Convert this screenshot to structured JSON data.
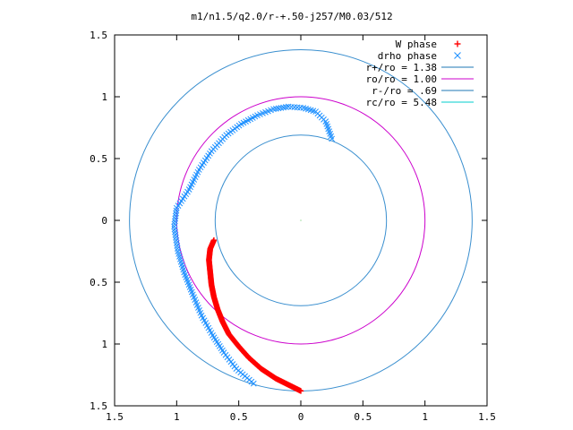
{
  "title": "m1/n1.5/q2.0/r-+.50-j257/M0.03/512",
  "chart_data": {
    "type": "scatter",
    "title": "m1/n1.5/q2.0/r-+.50-j257/M0.03/512",
    "xlim": [
      -1.5,
      1.5
    ],
    "ylim": [
      -1.5,
      1.5
    ],
    "x_tick_labels": [
      "1.5",
      "1",
      "0.5",
      "0",
      "0.5",
      "1",
      "1.5"
    ],
    "y_tick_labels": [
      "1.5",
      "1",
      "0.5",
      "0",
      "0.5",
      "1",
      "1.5"
    ],
    "x_ticks": [
      -1.5,
      -1,
      -0.5,
      0,
      0.5,
      1,
      1.5
    ],
    "y_ticks": [
      1.5,
      1,
      0.5,
      0,
      -0.5,
      -1,
      -1.5
    ],
    "grid": false,
    "legend_position": "top-right",
    "legend": [
      {
        "label": "W phase",
        "marker": "plus",
        "color": "#ff0000"
      },
      {
        "label": "drho phase",
        "marker": "cross",
        "color": "#1e90ff"
      },
      {
        "label": "r+/ro = 1.38",
        "marker": "line",
        "color": "#1f77b4"
      },
      {
        "label": "ro/ro = 1.00",
        "marker": "line",
        "color": "#cc00cc"
      },
      {
        "label": "r-/ro = .69",
        "marker": "line",
        "color": "#1f77b4"
      },
      {
        "label": "rc/ro = 5.48",
        "marker": "line",
        "color": "#00cccc"
      }
    ],
    "circles": [
      {
        "name": "r+/ro = 1.38",
        "r": 1.38,
        "color": "#3a8fcf"
      },
      {
        "name": "ro/ro = 1.00",
        "r": 1.0,
        "color": "#cc00cc"
      },
      {
        "name": "r-/ro = .69",
        "r": 0.69,
        "color": "#3a8fcf"
      }
    ],
    "series": [
      {
        "name": "W phase",
        "marker": "plus",
        "color": "#ff0000",
        "points": [
          [
            -0.7,
            -0.16
          ],
          [
            -0.73,
            -0.23
          ],
          [
            -0.74,
            -0.32
          ],
          [
            -0.73,
            -0.42
          ],
          [
            -0.72,
            -0.52
          ],
          [
            -0.7,
            -0.62
          ],
          [
            -0.67,
            -0.72
          ],
          [
            -0.63,
            -0.82
          ],
          [
            -0.58,
            -0.92
          ],
          [
            -0.5,
            -1.02
          ],
          [
            -0.42,
            -1.11
          ],
          [
            -0.32,
            -1.2
          ],
          [
            -0.2,
            -1.28
          ],
          [
            -0.08,
            -1.34
          ],
          [
            0.0,
            -1.38
          ]
        ]
      },
      {
        "name": "drho phase",
        "marker": "cross",
        "color": "#1e90ff",
        "points": [
          [
            0.25,
            0.66
          ],
          [
            0.2,
            0.8
          ],
          [
            0.12,
            0.88
          ],
          [
            0.02,
            0.91
          ],
          [
            -0.1,
            0.92
          ],
          [
            -0.22,
            0.9
          ],
          [
            -0.35,
            0.85
          ],
          [
            -0.48,
            0.78
          ],
          [
            -0.6,
            0.69
          ],
          [
            -0.72,
            0.56
          ],
          [
            -0.82,
            0.41
          ],
          [
            -0.9,
            0.25
          ],
          [
            -1.0,
            0.1
          ],
          [
            -1.02,
            -0.05
          ],
          [
            -0.99,
            -0.25
          ],
          [
            -0.94,
            -0.42
          ],
          [
            -0.87,
            -0.6
          ],
          [
            -0.8,
            -0.77
          ],
          [
            -0.71,
            -0.93
          ],
          [
            -0.62,
            -1.07
          ],
          [
            -0.52,
            -1.2
          ],
          [
            -0.38,
            -1.32
          ]
        ]
      }
    ]
  }
}
